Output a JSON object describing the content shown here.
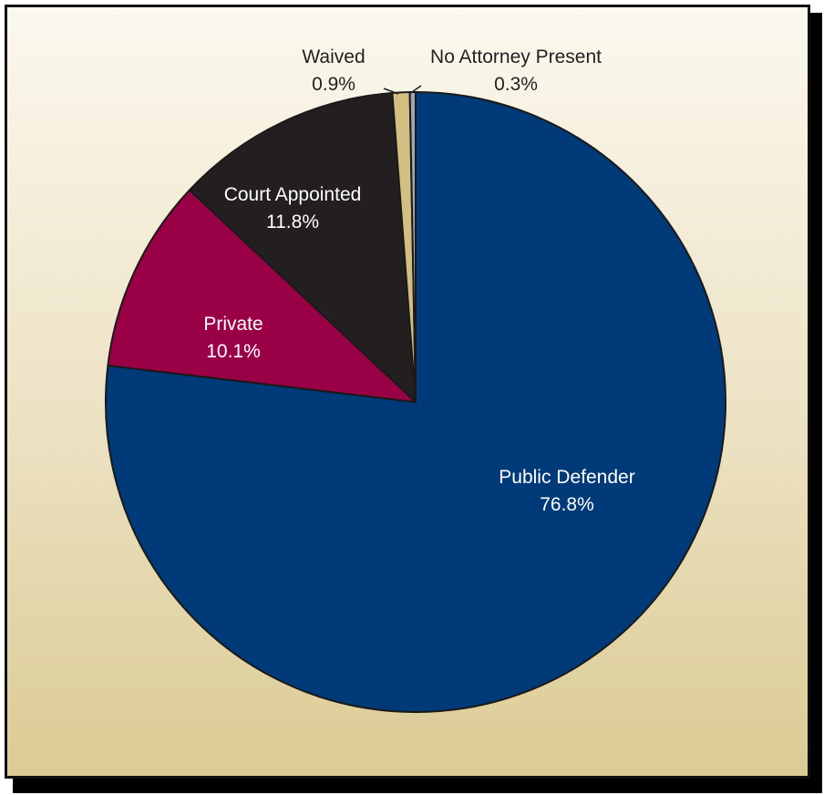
{
  "chart_data": {
    "type": "pie",
    "title": "",
    "slices": [
      {
        "label": "Public Defender",
        "value": 76.8,
        "value_label": "76.8%",
        "color": "#003a78",
        "text_color": "#ffffff"
      },
      {
        "label": "Private",
        "value": 10.1,
        "value_label": "10.1%",
        "color": "#9a0046",
        "text_color": "#ffffff"
      },
      {
        "label": "Court Appointed",
        "value": 11.8,
        "value_label": "11.8%",
        "color": "#231f20",
        "text_color": "#ffffff"
      },
      {
        "label": "Waived",
        "value": 0.9,
        "value_label": "0.9%",
        "color": "#d4bf82",
        "text_color": "#231f20"
      },
      {
        "label": "No Attorney Present",
        "value": 0.3,
        "value_label": "0.3%",
        "color": "#9ca6b6",
        "text_color": "#231f20"
      }
    ],
    "start_angle": "12 o'clock",
    "direction": "clockwise",
    "legend": "none (slices labeled directly)"
  }
}
